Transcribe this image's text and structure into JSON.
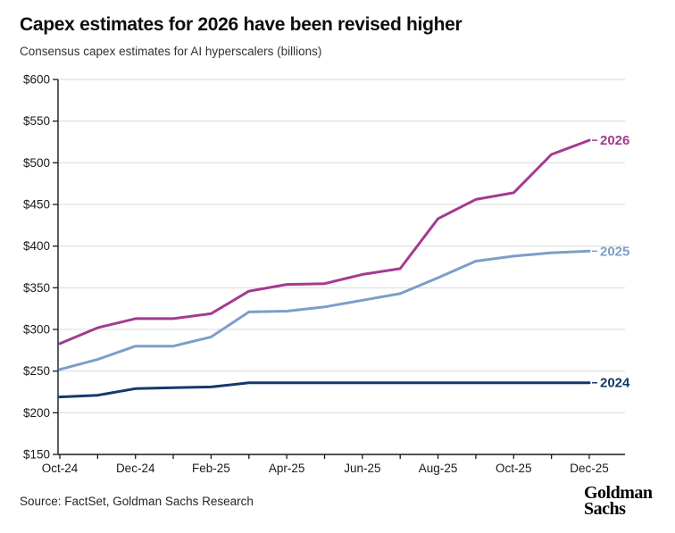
{
  "header": {
    "title": "Capex estimates for 2026 have been revised higher",
    "subtitle": "Consensus capex estimates for AI hyperscalers (billions)"
  },
  "footer": {
    "source": "Source: FactSet, Goldman Sachs Research",
    "logo_line1": "Goldman",
    "logo_line2": "Sachs"
  },
  "chart_data": {
    "type": "line",
    "title": "Capex estimates for 2026 have been revised higher",
    "subtitle": "Consensus capex estimates for AI hyperscalers (billions)",
    "x": [
      "Oct-24",
      "Nov-24",
      "Dec-24",
      "Jan-25",
      "Feb-25",
      "Mar-25",
      "Apr-25",
      "May-25",
      "Jun-25",
      "Jul-25",
      "Aug-25",
      "Sep-25",
      "Oct-25",
      "Nov-25",
      "Dec-25"
    ],
    "x_tick_labels": [
      "Oct-24",
      "Dec-24",
      "Feb-25",
      "Apr-25",
      "Jun-25",
      "Aug-25",
      "Oct-25",
      "Dec-25"
    ],
    "series": [
      {
        "name": "2026",
        "color": "#A53A90",
        "values": [
          283,
          302,
          313,
          313,
          319,
          346,
          354,
          355,
          366,
          373,
          433,
          456,
          464,
          510,
          527
        ]
      },
      {
        "name": "2025",
        "color": "#7C9EC9",
        "values": [
          252,
          264,
          280,
          280,
          291,
          321,
          322,
          327,
          335,
          343,
          362,
          382,
          388,
          392,
          394
        ]
      },
      {
        "name": "2024",
        "color": "#15386B",
        "values": [
          219,
          221,
          229,
          230,
          231,
          236,
          236,
          236,
          236,
          236,
          236,
          236,
          236,
          236,
          236
        ]
      }
    ],
    "ylim": [
      150,
      600
    ],
    "y_ticks": [
      150,
      200,
      250,
      300,
      350,
      400,
      450,
      500,
      550,
      600
    ],
    "y_tick_prefix": "$",
    "xlabel": "",
    "ylabel": "",
    "grid": "horizontal",
    "grid_color": "#d9d9d9",
    "axis_color": "#1a1a1a",
    "tick_label_color": "#1a1a1a",
    "legend_position": "end-of-line"
  }
}
